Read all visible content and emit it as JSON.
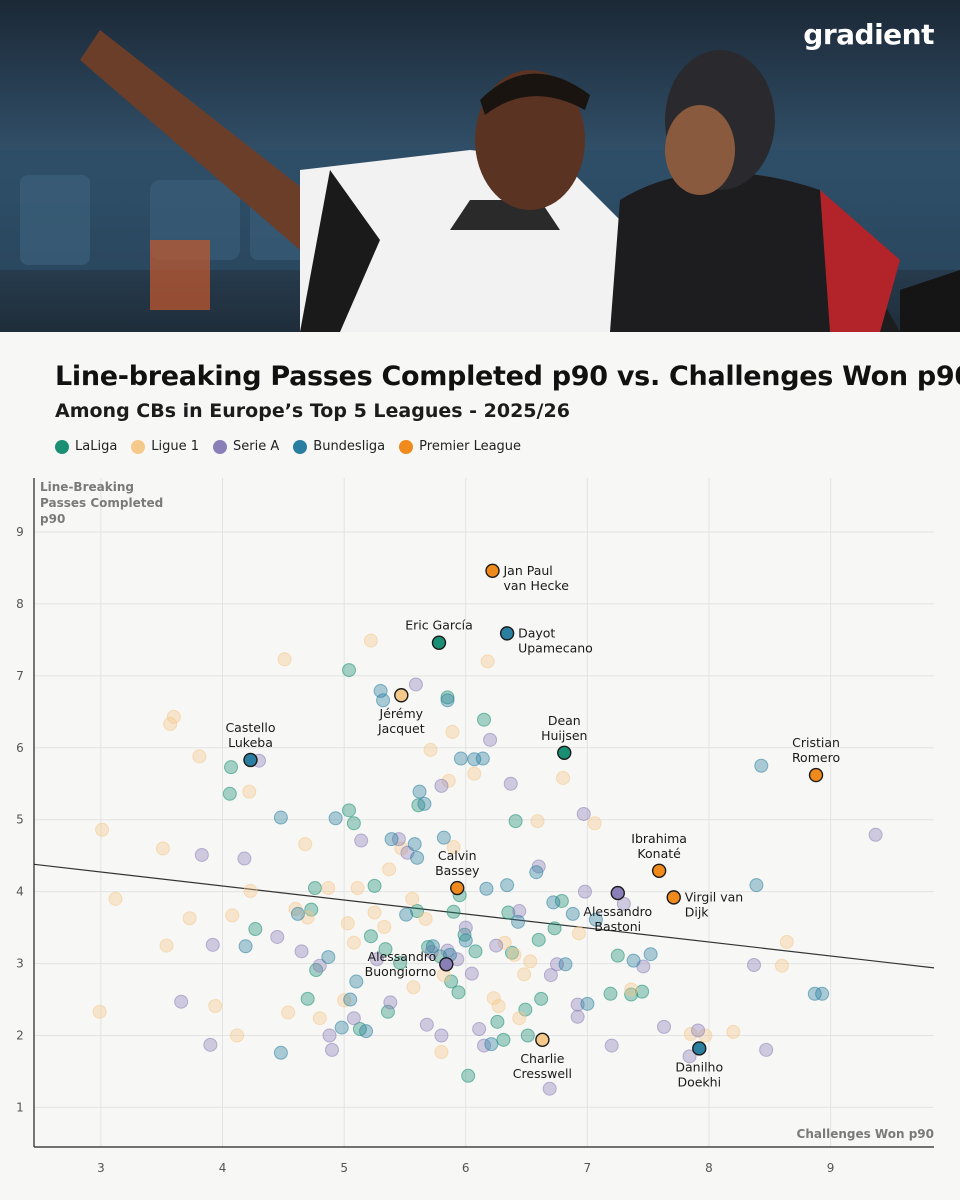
{
  "brand": {
    "logo_text": "gradient"
  },
  "header": {
    "title": "Line-breaking Passes Completed p90 vs. Challenges Won p90",
    "subtitle": "Among CBs in Europe’s Top 5 Leagues - 2025/26"
  },
  "legend": [
    {
      "label": "LaLiga",
      "color": "#1a8f73"
    },
    {
      "label": "Ligue 1",
      "color": "#f5c98a"
    },
    {
      "label": "Serie A",
      "color": "#8b7fb8"
    },
    {
      "label": "Bundesliga",
      "color": "#2a7fa0"
    },
    {
      "label": "Premier League",
      "color": "#f08a1c"
    }
  ],
  "chart_data": {
    "type": "scatter",
    "title": "Line-breaking Passes Completed p90 vs. Challenges Won p90",
    "subtitle": "Among CBs in Europe’s Top 5 Leagues - 2025/26",
    "xlabel": "Challenges Won p90",
    "ylabel": [
      "Line-Breaking",
      "Passes Completed",
      "p90"
    ],
    "xlim": [
      2.45,
      9.85
    ],
    "ylim": [
      0.45,
      9.75
    ],
    "xticks": [
      3,
      4,
      5,
      6,
      7,
      8,
      9
    ],
    "yticks": [
      1,
      2,
      3,
      4,
      5,
      6,
      7,
      8,
      9
    ],
    "grid": true,
    "legend_position": "top-left",
    "trendline": {
      "x": [
        2.45,
        9.85
      ],
      "y": [
        4.38,
        2.94
      ]
    },
    "highlighted": [
      {
        "name": [
          "Jan Paul",
          "van Hecke"
        ],
        "league": "Premier League",
        "x": 6.22,
        "y": 8.46,
        "label_pos": "right"
      },
      {
        "name": [
          "Eric García"
        ],
        "league": "LaLiga",
        "x": 5.78,
        "y": 7.46,
        "label_pos": "above"
      },
      {
        "name": [
          "Dayot",
          "Upamecano"
        ],
        "league": "Bundesliga",
        "x": 6.34,
        "y": 7.59,
        "label_pos": "right"
      },
      {
        "name": [
          "Jérémy",
          "Jacquet"
        ],
        "league": "Ligue 1",
        "x": 5.47,
        "y": 6.73,
        "label_pos": "below"
      },
      {
        "name": [
          "Castello",
          "Lukeba"
        ],
        "league": "Bundesliga",
        "x": 4.23,
        "y": 5.83,
        "label_pos": "above"
      },
      {
        "name": [
          "Dean",
          "Huijsen"
        ],
        "league": "LaLiga",
        "x": 6.81,
        "y": 5.93,
        "label_pos": "above"
      },
      {
        "name": [
          "Cristian",
          "Romero"
        ],
        "league": "Premier League",
        "x": 8.88,
        "y": 5.62,
        "label_pos": "above"
      },
      {
        "name": [
          "Ibrahima",
          "Konaté"
        ],
        "league": "Premier League",
        "x": 7.59,
        "y": 4.29,
        "label_pos": "above"
      },
      {
        "name": [
          "Calvin",
          "Bassey"
        ],
        "league": "Premier League",
        "x": 5.93,
        "y": 4.05,
        "label_pos": "above"
      },
      {
        "name": [
          "Alessandro",
          "Bastoni"
        ],
        "league": "Serie A",
        "x": 7.25,
        "y": 3.98,
        "label_pos": "below"
      },
      {
        "name": [
          "Virgil van",
          "Dijk"
        ],
        "league": "Premier League",
        "x": 7.71,
        "y": 3.92,
        "label_pos": "right"
      },
      {
        "name": [
          "Alessandro",
          "Buongiorno"
        ],
        "league": "Serie A",
        "x": 5.84,
        "y": 2.99,
        "label_pos": "left"
      },
      {
        "name": [
          "Charlie",
          "Cresswell"
        ],
        "league": "Ligue 1",
        "x": 6.63,
        "y": 1.94,
        "label_pos": "below"
      },
      {
        "name": [
          "Danilho",
          "Doekhi"
        ],
        "league": "Bundesliga",
        "x": 7.92,
        "y": 1.82,
        "label_pos": "below"
      }
    ],
    "others": [
      {
        "league": "LaLiga",
        "points": [
          [
            4.07,
            5.73
          ],
          [
            4.06,
            5.36
          ],
          [
            4.27,
            3.48
          ],
          [
            4.73,
            3.75
          ],
          [
            4.76,
            4.05
          ],
          [
            4.77,
            2.91
          ],
          [
            5.04,
            5.13
          ],
          [
            5.08,
            4.95
          ],
          [
            5.04,
            7.08
          ],
          [
            5.22,
            3.38
          ],
          [
            5.25,
            4.08
          ],
          [
            5.34,
            3.2
          ],
          [
            5.36,
            2.33
          ],
          [
            5.46,
            3.01
          ],
          [
            5.6,
            3.73
          ],
          [
            5.69,
            3.23
          ],
          [
            5.88,
            2.75
          ],
          [
            5.9,
            3.72
          ],
          [
            5.95,
            3.95
          ],
          [
            6.02,
            1.44
          ],
          [
            6.08,
            3.17
          ],
          [
            6.15,
            6.39
          ],
          [
            6.26,
            2.19
          ],
          [
            6.31,
            1.94
          ],
          [
            6.35,
            3.71
          ],
          [
            6.38,
            3.15
          ],
          [
            6.49,
            2.36
          ],
          [
            6.6,
            3.33
          ],
          [
            6.62,
            2.51
          ],
          [
            6.73,
            3.49
          ],
          [
            6.79,
            3.87
          ],
          [
            7.19,
            2.58
          ],
          [
            7.25,
            3.11
          ],
          [
            7.36,
            2.57
          ],
          [
            7.45,
            2.61
          ],
          [
            5.85,
            6.7
          ],
          [
            5.61,
            5.2
          ],
          [
            4.7,
            2.51
          ],
          [
            5.13,
            2.09
          ],
          [
            5.99,
            3.4
          ],
          [
            6.51,
            2.0
          ],
          [
            6.41,
            4.98
          ],
          [
            5.79,
            3.1
          ],
          [
            5.94,
            2.6
          ]
        ]
      },
      {
        "league": "Ligue 1",
        "points": [
          [
            3.01,
            4.86
          ],
          [
            2.99,
            2.33
          ],
          [
            3.12,
            3.9
          ],
          [
            3.51,
            4.6
          ],
          [
            3.54,
            3.25
          ],
          [
            3.57,
            6.33
          ],
          [
            3.6,
            6.43
          ],
          [
            3.73,
            3.63
          ],
          [
            3.81,
            5.88
          ],
          [
            3.94,
            2.41
          ],
          [
            4.08,
            3.67
          ],
          [
            4.12,
            2.0
          ],
          [
            4.22,
            5.39
          ],
          [
            4.23,
            4.01
          ],
          [
            4.54,
            2.32
          ],
          [
            4.51,
            7.23
          ],
          [
            4.6,
            3.76
          ],
          [
            4.68,
            4.66
          ],
          [
            4.7,
            3.64
          ],
          [
            4.8,
            2.24
          ],
          [
            4.87,
            4.05
          ],
          [
            5.0,
            2.49
          ],
          [
            5.03,
            3.56
          ],
          [
            5.08,
            3.29
          ],
          [
            5.11,
            4.05
          ],
          [
            5.22,
            7.49
          ],
          [
            5.25,
            3.71
          ],
          [
            5.33,
            3.51
          ],
          [
            5.37,
            4.31
          ],
          [
            5.47,
            4.6
          ],
          [
            5.56,
            3.9
          ],
          [
            5.67,
            3.62
          ],
          [
            5.71,
            5.97
          ],
          [
            5.8,
            1.77
          ],
          [
            5.82,
            2.84
          ],
          [
            5.86,
            5.54
          ],
          [
            5.89,
            6.22
          ],
          [
            5.9,
            4.62
          ],
          [
            6.07,
            5.64
          ],
          [
            6.18,
            7.2
          ],
          [
            6.23,
            2.52
          ],
          [
            6.27,
            2.41
          ],
          [
            6.32,
            3.29
          ],
          [
            6.4,
            3.12
          ],
          [
            6.48,
            2.85
          ],
          [
            6.53,
            3.03
          ],
          [
            6.59,
            4.98
          ],
          [
            6.8,
            5.58
          ],
          [
            6.93,
            3.42
          ],
          [
            7.06,
            4.95
          ],
          [
            7.36,
            2.64
          ],
          [
            7.85,
            2.02
          ],
          [
            7.97,
            2.0
          ],
          [
            8.2,
            2.05
          ],
          [
            8.6,
            2.97
          ],
          [
            8.64,
            3.3
          ],
          [
            5.57,
            2.67
          ],
          [
            6.44,
            2.24
          ]
        ]
      },
      {
        "league": "Serie A",
        "points": [
          [
            3.66,
            2.47
          ],
          [
            3.83,
            4.51
          ],
          [
            3.9,
            1.87
          ],
          [
            3.92,
            3.26
          ],
          [
            4.18,
            4.46
          ],
          [
            4.3,
            5.82
          ],
          [
            4.45,
            3.37
          ],
          [
            4.65,
            3.17
          ],
          [
            4.8,
            2.97
          ],
          [
            4.88,
            2.0
          ],
          [
            4.9,
            1.8
          ],
          [
            5.08,
            2.24
          ],
          [
            5.14,
            4.71
          ],
          [
            5.27,
            3.06
          ],
          [
            5.38,
            2.46
          ],
          [
            5.45,
            4.73
          ],
          [
            5.52,
            4.54
          ],
          [
            5.59,
            6.88
          ],
          [
            5.72,
            3.16
          ],
          [
            5.8,
            5.47
          ],
          [
            5.85,
            3.18
          ],
          [
            5.93,
            3.06
          ],
          [
            6.0,
            3.5
          ],
          [
            6.05,
            2.86
          ],
          [
            6.11,
            2.09
          ],
          [
            6.15,
            1.86
          ],
          [
            6.2,
            6.11
          ],
          [
            6.25,
            3.25
          ],
          [
            6.37,
            5.5
          ],
          [
            6.44,
            3.73
          ],
          [
            6.6,
            4.35
          ],
          [
            6.7,
            2.84
          ],
          [
            6.75,
            2.99
          ],
          [
            6.92,
            2.26
          ],
          [
            6.92,
            2.43
          ],
          [
            6.97,
            5.08
          ],
          [
            6.98,
            4.0
          ],
          [
            7.2,
            1.86
          ],
          [
            7.3,
            3.83
          ],
          [
            7.46,
            2.96
          ],
          [
            7.63,
            2.12
          ],
          [
            7.84,
            1.71
          ],
          [
            7.91,
            2.07
          ],
          [
            8.37,
            2.98
          ],
          [
            8.47,
            1.8
          ],
          [
            9.37,
            4.79
          ],
          [
            5.68,
            2.15
          ],
          [
            6.69,
            1.26
          ],
          [
            5.8,
            2.0
          ]
        ]
      },
      {
        "league": "Bundesliga",
        "points": [
          [
            4.19,
            3.24
          ],
          [
            4.48,
            5.03
          ],
          [
            4.48,
            1.76
          ],
          [
            4.62,
            3.69
          ],
          [
            4.87,
            3.09
          ],
          [
            4.93,
            5.02
          ],
          [
            4.98,
            2.11
          ],
          [
            5.05,
            2.5
          ],
          [
            5.1,
            2.75
          ],
          [
            5.18,
            2.06
          ],
          [
            5.3,
            6.79
          ],
          [
            5.32,
            6.66
          ],
          [
            5.39,
            4.73
          ],
          [
            5.51,
            3.68
          ],
          [
            5.58,
            4.66
          ],
          [
            5.6,
            4.47
          ],
          [
            5.62,
            5.39
          ],
          [
            5.73,
            3.24
          ],
          [
            5.82,
            4.75
          ],
          [
            5.85,
            6.66
          ],
          [
            5.87,
            3.12
          ],
          [
            5.96,
            5.85
          ],
          [
            6.0,
            3.32
          ],
          [
            6.07,
            5.84
          ],
          [
            6.14,
            5.85
          ],
          [
            6.17,
            4.04
          ],
          [
            6.21,
            1.88
          ],
          [
            6.34,
            4.09
          ],
          [
            6.43,
            3.58
          ],
          [
            6.58,
            4.27
          ],
          [
            6.82,
            2.99
          ],
          [
            6.88,
            3.69
          ],
          [
            7.0,
            2.44
          ],
          [
            7.07,
            3.61
          ],
          [
            7.38,
            3.04
          ],
          [
            7.52,
            3.13
          ],
          [
            8.39,
            4.09
          ],
          [
            8.43,
            5.75
          ],
          [
            8.87,
            2.58
          ],
          [
            8.93,
            2.58
          ],
          [
            5.66,
            5.22
          ],
          [
            6.72,
            3.85
          ]
        ]
      }
    ]
  }
}
